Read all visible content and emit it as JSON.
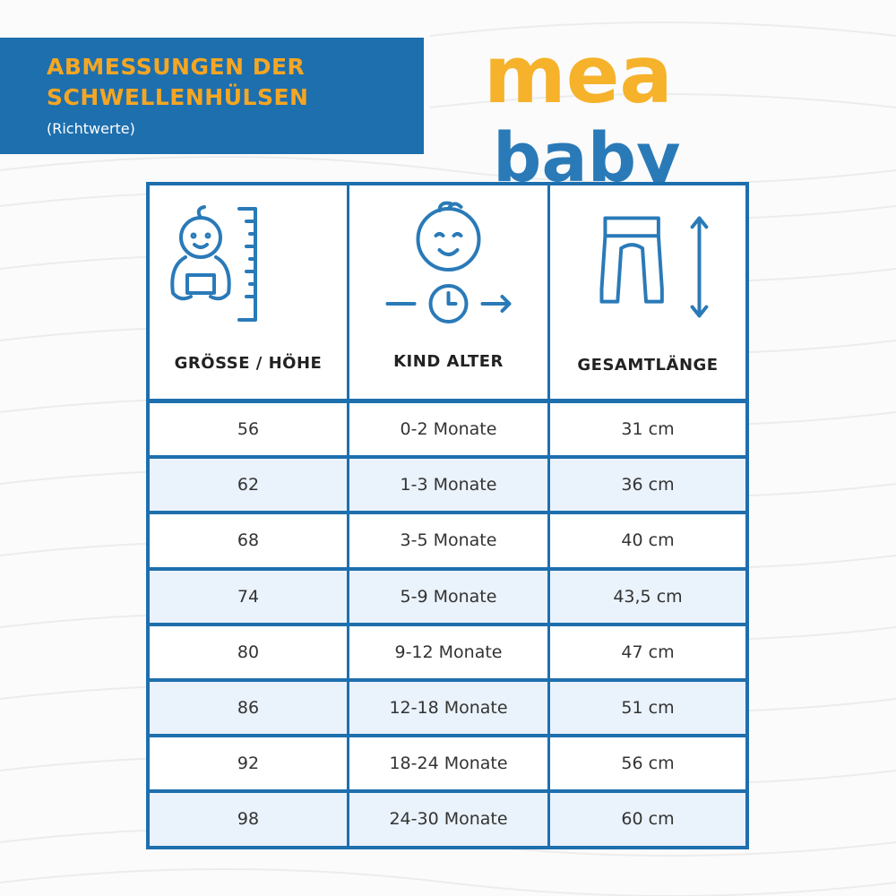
{
  "header": {
    "title_lines": [
      "ABMESSUNGEN DER",
      "SCHWELLENHÜLSEN"
    ],
    "subtitle": "(Richtwerte)"
  },
  "logo": {
    "part1": "mea",
    "part2": "baby"
  },
  "table": {
    "headers": [
      "GRÖSSE / HÖHE",
      "KIND ALTER",
      "GESAMTLÄNGE"
    ],
    "rows": [
      [
        "56",
        "0-2 Monate",
        "31 cm"
      ],
      [
        "62",
        "1-3 Monate",
        "36 cm"
      ],
      [
        "68",
        "3-5 Monate",
        "40 cm"
      ],
      [
        "74",
        "5-9 Monate",
        "43,5 cm"
      ],
      [
        "80",
        "9-12 Monate",
        "47 cm"
      ],
      [
        "86",
        "12-18 Monate",
        "51 cm"
      ],
      [
        "92",
        "18-24 Monate",
        "56 cm"
      ],
      [
        "98",
        "24-30 Monate",
        "60 cm"
      ]
    ]
  }
}
